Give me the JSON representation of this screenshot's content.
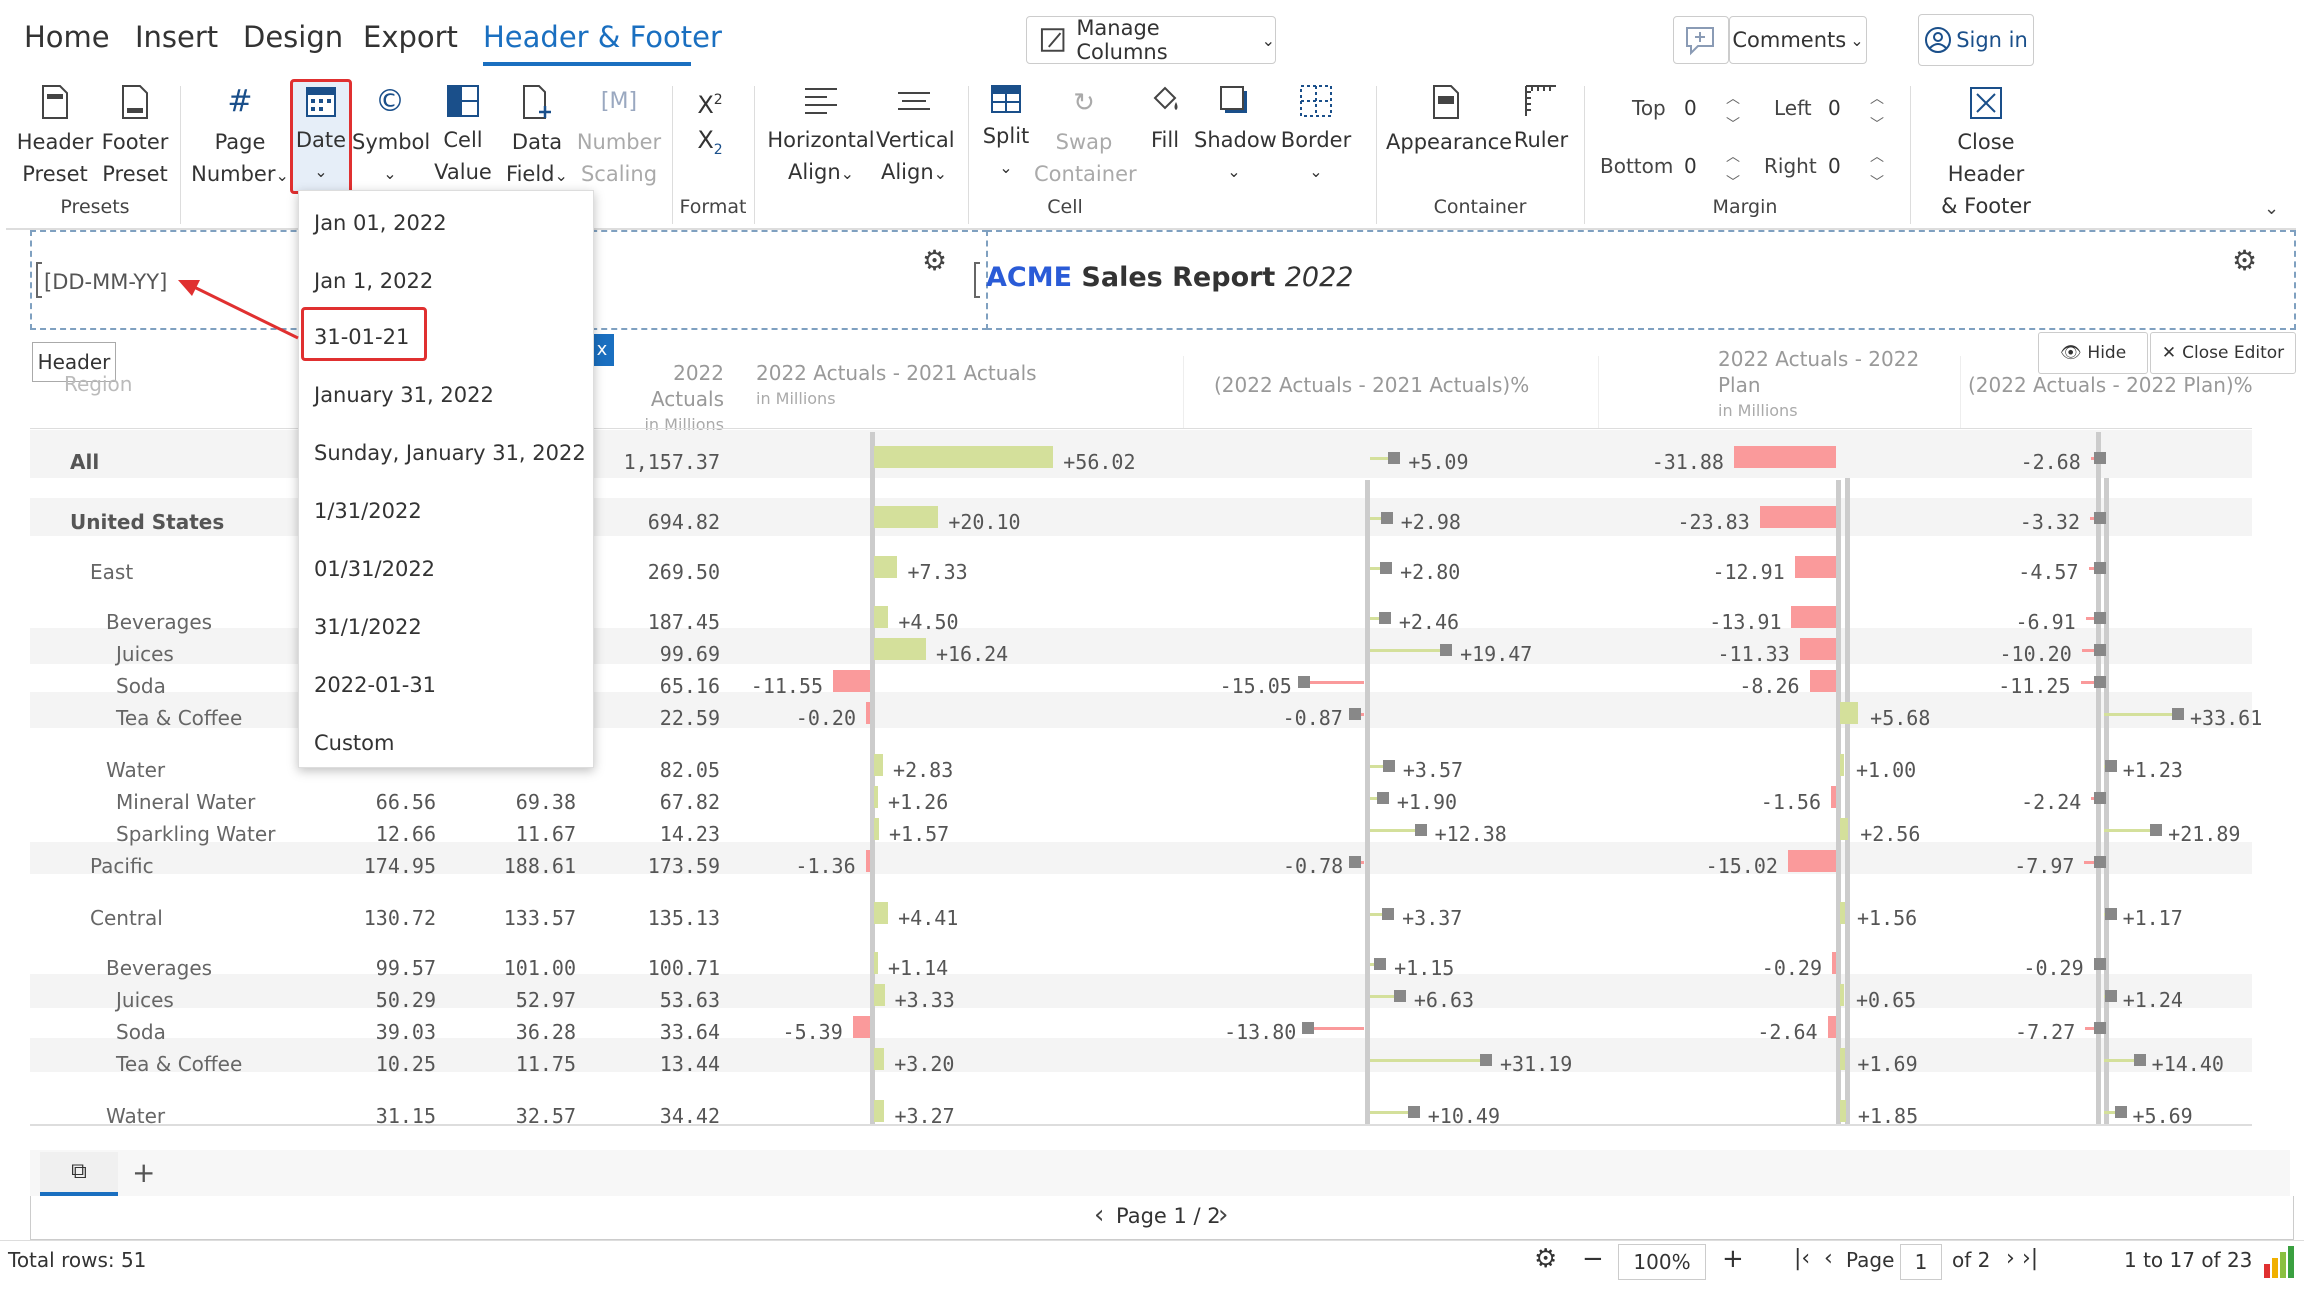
{
  "menu_tabs": [
    "Home",
    "Insert",
    "Design",
    "Export",
    "Header & Footer"
  ],
  "manage_columns": "Manage Columns",
  "comments": "Comments",
  "sign_in": "Sign in",
  "ribbon": {
    "header_preset": [
      "Header",
      "Preset"
    ],
    "footer_preset": [
      "Footer",
      "Preset"
    ],
    "presets_group": "Presets",
    "page_number": [
      "Page",
      "Number"
    ],
    "date": "Date",
    "symbol": "Symbol",
    "cell_value": [
      "Cell",
      "Value"
    ],
    "data_field": [
      "Data",
      "Field"
    ],
    "number_scaling": [
      "Number",
      "Scaling"
    ],
    "format_group": "Format",
    "horizontal_align": [
      "Horizontal",
      "Align"
    ],
    "vertical_align": [
      "Vertical",
      "Align"
    ],
    "split": "Split",
    "swap_container": [
      "Swap",
      "Container"
    ],
    "fill": "Fill",
    "shadow": "Shadow",
    "border": "Border",
    "cell_group": "Cell",
    "appearance": "Appearance",
    "ruler": "Ruler",
    "container_group": "Container",
    "margin": {
      "top_label": "Top",
      "top": "0",
      "left_label": "Left",
      "left": "0",
      "bottom_label": "Bottom",
      "bottom": "0",
      "right_label": "Right",
      "right": "0"
    },
    "margin_group": "Margin",
    "close": [
      "Close Header",
      "& Footer"
    ]
  },
  "date_options": [
    "Jan 01, 2022",
    "Jan 1, 2022",
    "31-01-21",
    "January 31, 2022",
    "Sunday, January 31, 2022",
    "1/31/2022",
    "01/31/2022",
    "31/1/2022",
    "2022-01-31",
    "Custom"
  ],
  "header_editor": {
    "left_text": "[DD-MM-YY]",
    "header_tag": "Header",
    "title_acme": "ACME",
    "title_rest": " Sales Report ",
    "title_year": "2022",
    "hide": "Hide",
    "close_editor": "Close Editor"
  },
  "columns": {
    "region": "Region",
    "c3": "2022 Actuals",
    "c3_sub": "in Millions",
    "c4": "2022 Actuals - 2021 Actuals",
    "c4_sub": "in Millions",
    "c5": "(2022 Actuals - 2021 Actuals)%",
    "c6a": "2022 Actuals - 2022",
    "c6b": "Plan",
    "c6_sub": "in Millions",
    "c7": "(2022 Actuals - 2022 Plan)%"
  },
  "rows": [
    {
      "label": "All",
      "c1": "",
      "c2": "",
      "c3": "1,157.37",
      "d": "+56.02",
      "p": "+5.09",
      "pl": "-31.88",
      "pp": "-2.68"
    },
    {
      "label": "United States",
      "c1": "",
      "c2": "",
      "c3": "694.82",
      "d": "+20.10",
      "p": "+2.98",
      "pl": "-23.83",
      "pp": "-3.32"
    },
    {
      "label": "East",
      "c1": "",
      "c2": "",
      "c3": "269.50",
      "d": "+7.33",
      "p": "+2.80",
      "pl": "-12.91",
      "pp": "-4.57"
    },
    {
      "label": "Beverages",
      "c1": "",
      "c2": "",
      "c3": "187.45",
      "d": "+4.50",
      "p": "+2.46",
      "pl": "-13.91",
      "pp": "-6.91"
    },
    {
      "label": "Juices",
      "c1": "",
      "c2": "",
      "c3": "99.69",
      "d": "+16.24",
      "p": "+19.47",
      "pl": "-11.33",
      "pp": "-10.20"
    },
    {
      "label": "Soda",
      "c1": "",
      "c2": "",
      "c3": "65.16",
      "d": "-11.55",
      "p": "-15.05",
      "pl": "-8.26",
      "pp": "-11.25"
    },
    {
      "label": "Tea & Coffee",
      "c1": "",
      "c2": "",
      "c3": "22.59",
      "d": "-0.20",
      "p": "-0.87",
      "pl": "+5.68",
      "pp": "+33.61"
    },
    {
      "label": "Water",
      "c1": "",
      "c2": "",
      "c3": "82.05",
      "d": "+2.83",
      "p": "+3.57",
      "pl": "+1.00",
      "pp": "+1.23"
    },
    {
      "label": "Mineral Water",
      "c1": "66.56",
      "c2": "69.38",
      "c3": "67.82",
      "d": "+1.26",
      "p": "+1.90",
      "pl": "-1.56",
      "pp": "-2.24"
    },
    {
      "label": "Sparkling Water",
      "c1": "12.66",
      "c2": "11.67",
      "c3": "14.23",
      "d": "+1.57",
      "p": "+12.38",
      "pl": "+2.56",
      "pp": "+21.89"
    },
    {
      "label": "Pacific",
      "c1": "174.95",
      "c2": "188.61",
      "c3": "173.59",
      "d": "-1.36",
      "p": "-0.78",
      "pl": "-15.02",
      "pp": "-7.97"
    },
    {
      "label": "Central",
      "c1": "130.72",
      "c2": "133.57",
      "c3": "135.13",
      "d": "+4.41",
      "p": "+3.37",
      "pl": "+1.56",
      "pp": "+1.17"
    },
    {
      "label": "Beverages",
      "c1": "99.57",
      "c2": "101.00",
      "c3": "100.71",
      "d": "+1.14",
      "p": "+1.15",
      "pl": "-0.29",
      "pp": "-0.29"
    },
    {
      "label": "Juices",
      "c1": "50.29",
      "c2": "52.97",
      "c3": "53.63",
      "d": "+3.33",
      "p": "+6.63",
      "pl": "+0.65",
      "pp": "+1.24"
    },
    {
      "label": "Soda",
      "c1": "39.03",
      "c2": "36.28",
      "c3": "33.64",
      "d": "-5.39",
      "p": "-13.80",
      "pl": "-2.64",
      "pp": "-7.27"
    },
    {
      "label": "Tea & Coffee",
      "c1": "10.25",
      "c2": "11.75",
      "c3": "13.44",
      "d": "+3.20",
      "p": "+31.19",
      "pl": "+1.69",
      "pp": "+14.40"
    },
    {
      "label": "Water",
      "c1": "31.15",
      "c2": "32.57",
      "c3": "34.42",
      "d": "+3.27",
      "p": "+10.49",
      "pl": "+1.85",
      "pp": "+5.69"
    }
  ],
  "pager": {
    "page_text": "Page 1 / 2"
  },
  "status": {
    "total_rows": "Total rows: 51",
    "zoom": "100%",
    "page_label": "Page",
    "page_value": "1",
    "of_pages": "of 2",
    "range": "1 to 17 of 23"
  }
}
